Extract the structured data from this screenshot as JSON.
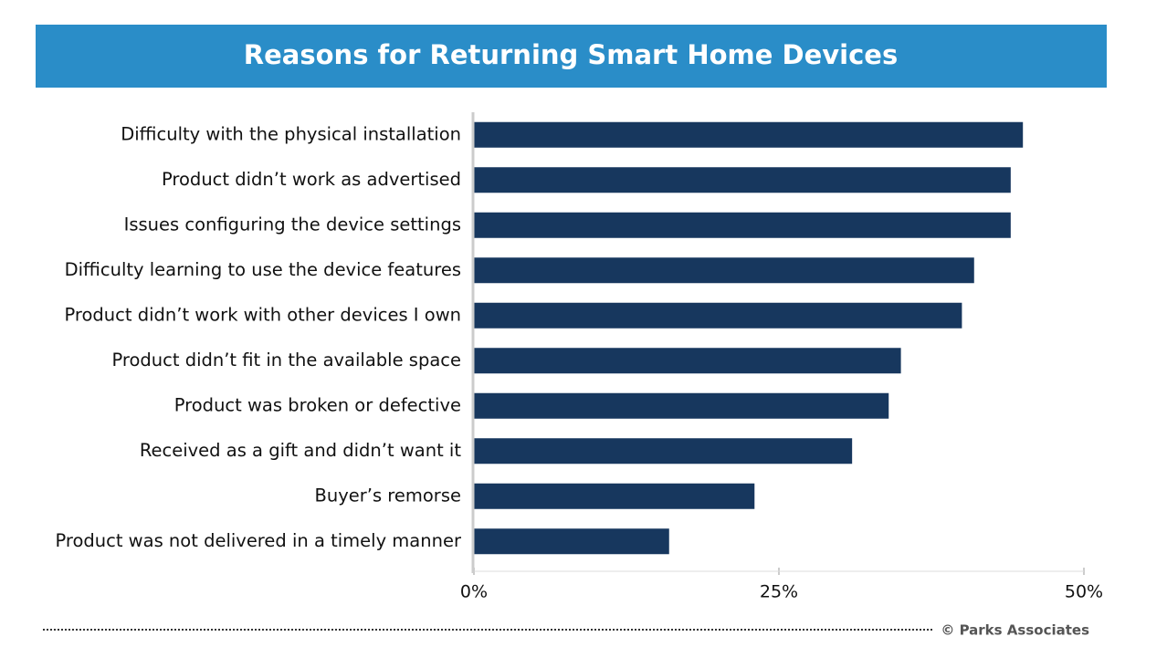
{
  "chart_data": {
    "type": "bar",
    "orientation": "horizontal",
    "title": "Reasons for Returning Smart Home Devices",
    "source": "© Parks Associates",
    "categories": [
      "Difficulty with the physical installation",
      "Product didn’t work as advertised",
      "Issues configuring the device settings",
      "Difficulty learning to use the device features",
      "Product didn’t work with other devices I own",
      "Product didn’t fit in the available space",
      "Product was broken or defective",
      "Received as a gift and didn’t want it",
      "Buyer’s remorse",
      "Product was not delivered in a timely manner"
    ],
    "values": [
      45,
      44,
      44,
      41,
      40,
      35,
      34,
      31,
      23,
      16
    ],
    "color": "#17375e",
    "xlim": [
      0,
      50
    ],
    "xticks": [
      {
        "value": 0,
        "label": "0%"
      },
      {
        "value": 25,
        "label": "25%"
      },
      {
        "value": 50,
        "label": "50%"
      }
    ],
    "grid": false
  }
}
